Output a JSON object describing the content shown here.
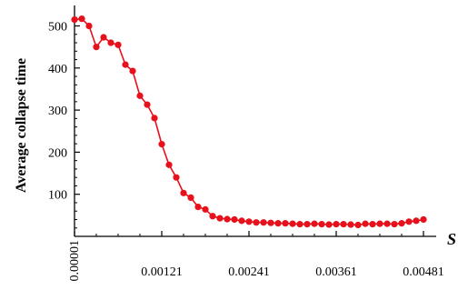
{
  "chart_data": {
    "type": "line",
    "title": "",
    "xlabel": "S",
    "ylabel": "Average collapse time",
    "xlim": [
      1e-05,
      0.00491
    ],
    "ylim": [
      0,
      540
    ],
    "x_ticks": [
      1e-05,
      0.00121,
      0.00241,
      0.00361,
      0.00481
    ],
    "x_tick_labels": [
      "0.00001",
      "0.00121",
      "0.00241",
      "0.00361",
      "0.00481"
    ],
    "y_ticks": [
      100,
      200,
      300,
      400,
      500
    ],
    "y_tick_labels": [
      "100",
      "200",
      "300",
      "400",
      "500"
    ],
    "grid": false,
    "legend": "none",
    "series": [
      {
        "color": "#e8101a",
        "x": [
          1e-05,
          0.00011,
          0.00021,
          0.00031,
          0.00041,
          0.00051,
          0.00061,
          0.00071,
          0.00081,
          0.00091,
          0.00101,
          0.00111,
          0.00121,
          0.00131,
          0.00141,
          0.00151,
          0.00161,
          0.00171,
          0.00181,
          0.00191,
          0.00201,
          0.00211,
          0.00221,
          0.00231,
          0.00241,
          0.00251,
          0.00261,
          0.00271,
          0.00281,
          0.00291,
          0.00301,
          0.00311,
          0.00321,
          0.00331,
          0.00341,
          0.00351,
          0.00361,
          0.00371,
          0.00381,
          0.00391,
          0.00401,
          0.00411,
          0.00421,
          0.00431,
          0.00441,
          0.00451,
          0.00461,
          0.00471,
          0.00481
        ],
        "values": [
          515,
          517,
          500,
          450,
          473,
          460,
          455,
          408,
          393,
          334,
          313,
          281,
          219,
          170,
          140,
          103,
          92,
          70,
          64,
          48,
          43,
          41,
          40,
          37,
          35,
          33,
          33,
          32,
          31,
          31,
          30,
          29,
          29,
          30,
          29,
          28,
          29,
          29,
          28,
          27,
          30,
          29,
          30,
          30,
          29,
          31,
          35,
          37,
          40
        ]
      }
    ]
  }
}
